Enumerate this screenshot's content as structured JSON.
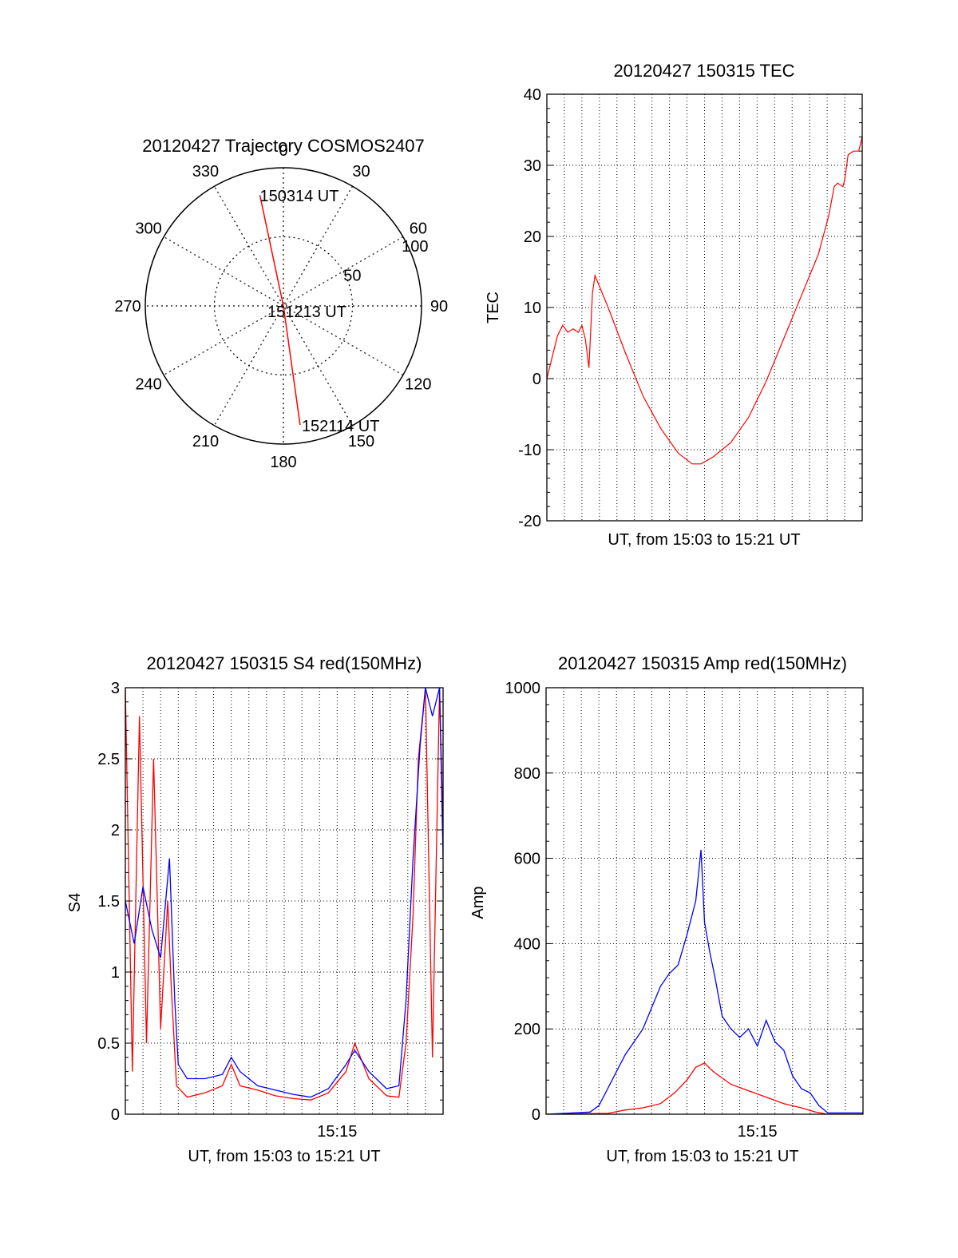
{
  "colors": {
    "red_channel": "#ff0000",
    "blue_channel": "#0000ff",
    "axes": "#000000",
    "grid": "#000000",
    "background": "#ffffff"
  },
  "chart_data": [
    {
      "type": "polar",
      "title": "20120427 Trajectory COSMOS2407",
      "angle_labels": [
        "0",
        "30",
        "60",
        "90",
        "120",
        "150",
        "180",
        "210",
        "240",
        "270",
        "300",
        "330"
      ],
      "radius_labels": [
        "50",
        "100"
      ],
      "rlim": [
        0,
        100
      ],
      "grid": true,
      "series": [
        {
          "color": "#ff0000",
          "points": [
            {
              "label": "150314 UT",
              "azimuth_deg": 348,
              "radius": 82
            },
            {
              "label": "151213 UT",
              "azimuth_deg": 0,
              "radius": 0
            },
            {
              "label": "152114 UT",
              "azimuth_deg": 172,
              "radius": 87
            }
          ]
        }
      ]
    },
    {
      "type": "line",
      "title": "20120427 150315 TEC",
      "xlabel": "UT, from 15:03 to 15:21 UT",
      "ylabel": "TEC",
      "xlim": [
        0,
        18
      ],
      "ylim": [
        -20,
        40
      ],
      "yticks": [
        "-20",
        "-10",
        "0",
        "10",
        "20",
        "30",
        "40"
      ],
      "grid": true,
      "series": [
        {
          "color": "#ff0000",
          "x": [
            0,
            0.3,
            0.6,
            0.9,
            1.2,
            1.5,
            1.8,
            2.0,
            2.2,
            2.4,
            2.6,
            2.75,
            3.5,
            4.5,
            5.5,
            6.5,
            7.5,
            8.3,
            8.8,
            9.5,
            10.5,
            11.5,
            12.5,
            13.5,
            15.5,
            16.1,
            16.4,
            16.6,
            16.9,
            17.0,
            17.2,
            17.5,
            17.8,
            18.0
          ],
          "y": [
            0,
            3,
            6,
            7.5,
            6.5,
            7,
            6.5,
            7.5,
            5.5,
            1.5,
            12,
            14.5,
            10,
            3.5,
            -2.5,
            -7,
            -10.5,
            -12,
            -12,
            -11,
            -9,
            -5.5,
            -0.5,
            5.5,
            17.5,
            23,
            27,
            27.5,
            27,
            28,
            31.5,
            32,
            32,
            34
          ]
        }
      ]
    },
    {
      "type": "line",
      "title": "20120427 150315 S4 red(150MHz)",
      "xlabel": "UT, from 15:03 to 15:21 UT",
      "ylabel": "S4",
      "xlim": [
        0,
        18
      ],
      "ylim": [
        0,
        3
      ],
      "yticks": [
        "0",
        "0.5",
        "1",
        "1.5",
        "2",
        "2.5",
        "3"
      ],
      "xticks": [
        {
          "x": 12,
          "label": "15:15"
        }
      ],
      "grid": true,
      "series": [
        {
          "color": "#ff0000",
          "x": [
            0,
            0.4,
            0.8,
            1.2,
            1.6,
            2.0,
            2.4,
            2.6,
            2.9,
            3.5,
            4.5,
            5.5,
            6.0,
            6.5,
            7.5,
            8.5,
            9.5,
            10.5,
            11.5,
            12.5,
            13.0,
            13.8,
            14.8,
            15.5,
            15.9,
            16.3,
            16.6,
            17.0,
            17.4,
            17.8,
            18.0
          ],
          "y": [
            3.0,
            0.3,
            2.8,
            0.5,
            2.5,
            0.6,
            1.5,
            0.9,
            0.2,
            0.12,
            0.15,
            0.2,
            0.35,
            0.2,
            0.17,
            0.13,
            0.11,
            0.1,
            0.15,
            0.3,
            0.5,
            0.25,
            0.13,
            0.12,
            0.5,
            1.4,
            2.5,
            3.0,
            0.4,
            3.0,
            2.0
          ]
        },
        {
          "color": "#0000ff",
          "x": [
            0,
            0.5,
            1.0,
            1.5,
            2.0,
            2.5,
            2.8,
            3.0,
            3.5,
            4.5,
            5.5,
            6.0,
            6.5,
            7.5,
            8.5,
            9.5,
            10.5,
            11.5,
            12.5,
            13.0,
            13.8,
            14.8,
            15.5,
            15.9,
            16.3,
            16.7,
            17.0,
            17.4,
            17.8,
            18.0
          ],
          "y": [
            1.5,
            1.2,
            1.6,
            1.3,
            1.1,
            1.8,
            0.8,
            0.35,
            0.25,
            0.25,
            0.28,
            0.4,
            0.3,
            0.2,
            0.17,
            0.14,
            0.12,
            0.18,
            0.35,
            0.45,
            0.3,
            0.18,
            0.2,
            0.8,
            1.8,
            2.6,
            3.0,
            2.8,
            3.0,
            1.8
          ]
        }
      ]
    },
    {
      "type": "line",
      "title": "20120427 150315 Amp red(150MHz)",
      "xlabel": "UT, from 15:03 to 15:21 UT",
      "ylabel": "Amp",
      "xlim": [
        0,
        18
      ],
      "ylim": [
        0,
        1000
      ],
      "yticks": [
        "0",
        "200",
        "400",
        "600",
        "800",
        "1000"
      ],
      "xticks": [
        {
          "x": 12,
          "label": "15:15"
        }
      ],
      "grid": true,
      "series": [
        {
          "color": "#ff0000",
          "x": [
            0,
            3.5,
            4.5,
            5.5,
            6.5,
            7.3,
            8.0,
            8.5,
            9.0,
            9.5,
            10.5,
            11.5,
            12.5,
            13.5,
            14.5,
            15.3,
            16.0,
            18.0
          ],
          "y": [
            0,
            2,
            10,
            15,
            25,
            50,
            80,
            110,
            120,
            100,
            70,
            55,
            40,
            25,
            15,
            5,
            0,
            0
          ]
        },
        {
          "color": "#0000ff",
          "x": [
            0,
            2.5,
            3.0,
            3.5,
            4.0,
            4.5,
            5.0,
            5.5,
            6.0,
            6.5,
            7.0,
            7.5,
            8.0,
            8.5,
            8.8,
            9.0,
            9.3,
            9.6,
            10.0,
            10.5,
            11.0,
            11.5,
            12.0,
            12.5,
            13.0,
            13.5,
            14.0,
            14.5,
            15.0,
            15.5,
            16.0,
            18.0
          ],
          "y": [
            0,
            5,
            20,
            60,
            100,
            140,
            170,
            200,
            250,
            300,
            330,
            350,
            420,
            500,
            620,
            450,
            380,
            320,
            230,
            200,
            180,
            200,
            160,
            220,
            170,
            150,
            90,
            60,
            50,
            20,
            3,
            3
          ]
        }
      ]
    }
  ]
}
